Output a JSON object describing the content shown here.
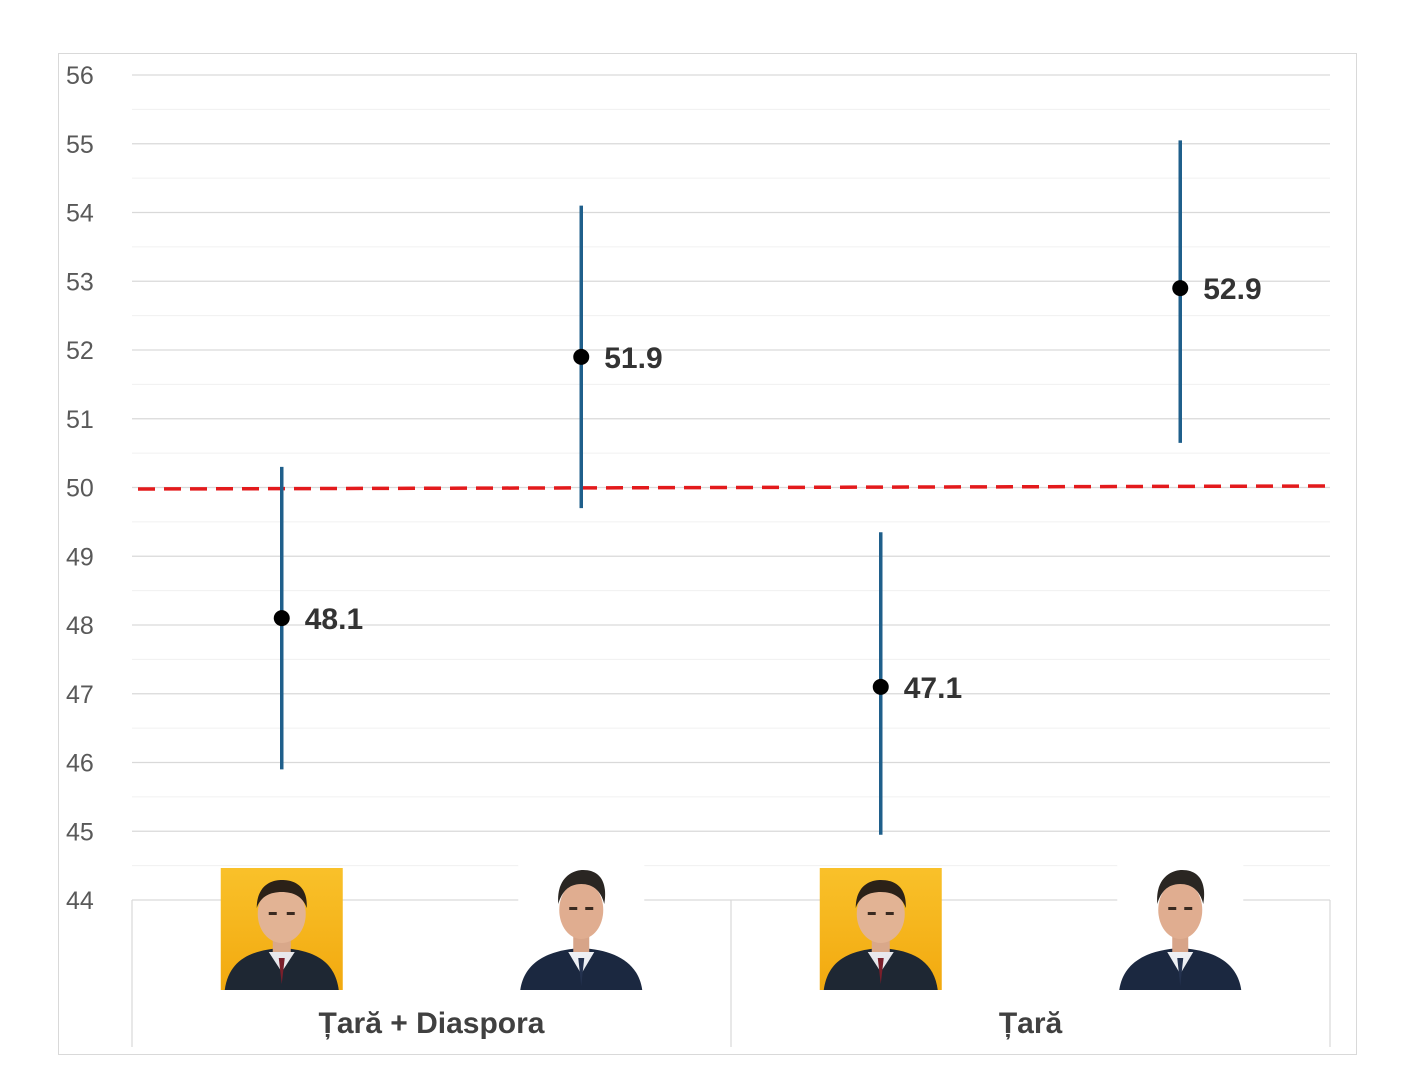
{
  "chart_data": {
    "type": "scatter",
    "subtype": "point-with-error-bars",
    "title": "",
    "xlabel": "",
    "ylabel": "",
    "ylim": [
      44,
      56
    ],
    "yticks": [
      44,
      45,
      46,
      47,
      48,
      49,
      50,
      51,
      52,
      53,
      54,
      55,
      56
    ],
    "minor_gridlines": true,
    "reference_line": {
      "value": 50,
      "style": "dashed",
      "color": "#e31a1c"
    },
    "groups": [
      "Țară + Diaspora",
      "Țară"
    ],
    "candidate_images": [
      "candidate-1-portrait",
      "candidate-2-portrait"
    ],
    "points": [
      {
        "group": 0,
        "candidate": 0,
        "value": 48.1,
        "label": "48.1",
        "low": 45.9,
        "high": 50.3
      },
      {
        "group": 0,
        "candidate": 1,
        "value": 51.9,
        "label": "51.9",
        "low": 49.7,
        "high": 54.1
      },
      {
        "group": 1,
        "candidate": 0,
        "value": 47.1,
        "label": "47.1",
        "low": 44.95,
        "high": 49.35
      },
      {
        "group": 1,
        "candidate": 1,
        "value": 52.9,
        "label": "52.9",
        "low": 50.65,
        "high": 55.05
      }
    ],
    "colors": {
      "error_bar": "#1f5f8b",
      "point": "#000000",
      "reference": "#e31a1c",
      "grid": "#d9d9d9",
      "minor_grid": "#f0f0f0",
      "portrait_bg_1": "#f7b91a"
    }
  }
}
